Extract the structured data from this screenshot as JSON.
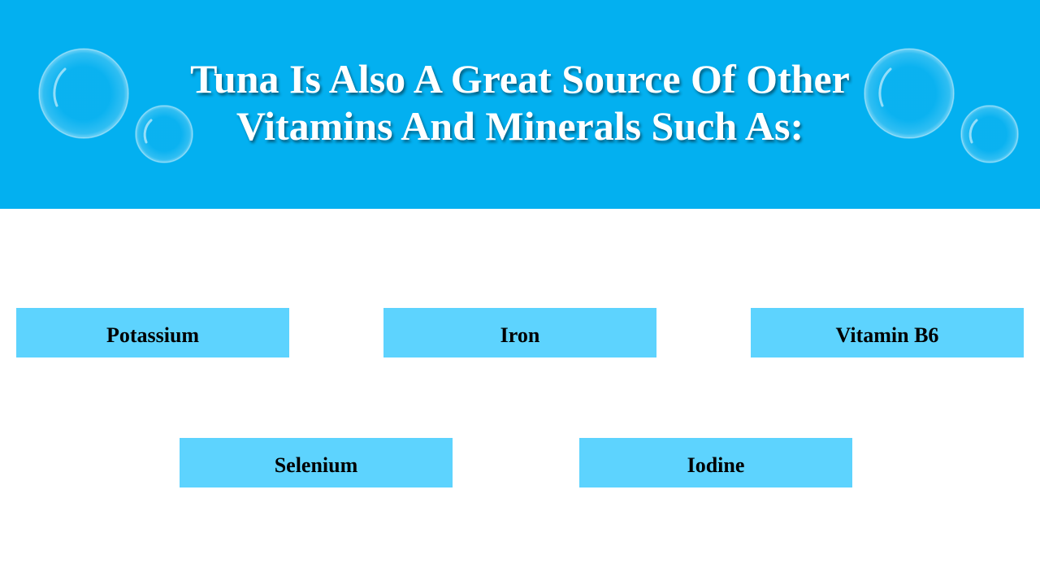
{
  "header": {
    "title": "Tuna Is Also A Great Source Of Other Vitamins And Minerals Such As:"
  },
  "items": [
    "Potassium",
    "Iron",
    "Vitamin B6",
    "Selenium",
    "Iodine"
  ]
}
